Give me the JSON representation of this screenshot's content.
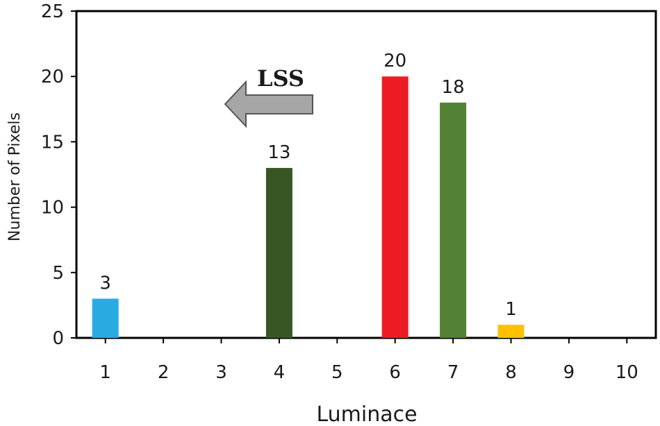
{
  "chart_data": {
    "type": "bar",
    "categories": [
      "1",
      "2",
      "3",
      "4",
      "5",
      "6",
      "7",
      "8",
      "9",
      "10"
    ],
    "values": [
      3,
      0,
      0,
      13,
      0,
      20,
      18,
      1,
      0,
      0
    ],
    "data_labels": [
      "3",
      "",
      "",
      "13",
      "",
      "20",
      "18",
      "1",
      "",
      ""
    ],
    "colors": [
      "#29abe2",
      "#ffffff",
      "#ffffff",
      "#375623",
      "#ffffff",
      "#ed1c24",
      "#538135",
      "#ffc000",
      "#ffffff",
      "#ffffff"
    ],
    "title": "",
    "xlabel": "Luminace",
    "ylabel": "Number of Pixels",
    "ylim": [
      0,
      25
    ],
    "yticks": [
      "0",
      "5",
      "10",
      "15",
      "20",
      "25"
    ],
    "grid": false,
    "annotation": {
      "text": "LSS",
      "arrow": "left",
      "arrow_color": "#a6a6a6"
    }
  }
}
